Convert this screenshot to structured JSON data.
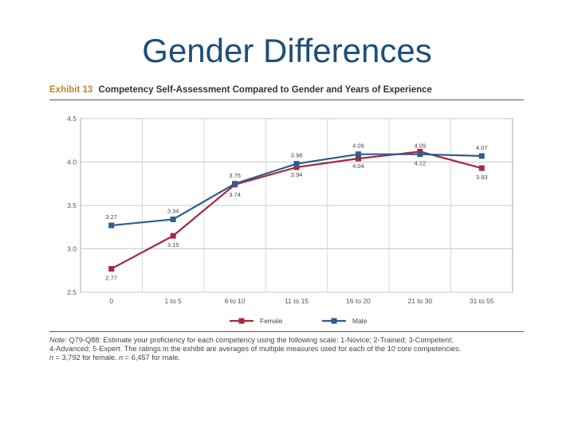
{
  "slide": {
    "title": "Gender Differences"
  },
  "exhibit": {
    "number": "Exhibit 13",
    "title": "Competency Self-Assessment Compared to Gender and Years of Experience"
  },
  "chart_data": {
    "type": "line",
    "title": "Competency Self-Assessment Compared to Gender and Years of Experience",
    "xlabel": "",
    "ylabel": "",
    "categories": [
      "0",
      "1 to 5",
      "6 to 10",
      "11 to 15",
      "16 to 20",
      "21 to 30",
      "31 to 55"
    ],
    "ylim": [
      2.5,
      4.5
    ],
    "yticks": [
      {
        "value": 2.5,
        "label": "2.5"
      },
      {
        "value": 3.0,
        "label": "3.0"
      },
      {
        "value": 3.5,
        "label": "3.5"
      },
      {
        "value": 4.0,
        "label": "4.0"
      },
      {
        "value": 4.5,
        "label": "4.5"
      }
    ],
    "grid": true,
    "legend_position": "bottom",
    "series": [
      {
        "name": "Female",
        "color": "#a8283c",
        "values": [
          2.77,
          3.15,
          3.74,
          3.94,
          4.04,
          4.12,
          3.93
        ],
        "labels": [
          "2.77",
          "3.15",
          "3.74",
          "3.94",
          "4.04",
          "4.12",
          "3.93"
        ]
      },
      {
        "name": "Male",
        "color": "#2e5d8e",
        "values": [
          3.27,
          3.34,
          3.75,
          3.98,
          4.09,
          4.09,
          4.07
        ],
        "labels": [
          "3.27",
          "3.34",
          "3.75",
          "3.98",
          "4.09",
          "4.09",
          "4.07"
        ]
      }
    ]
  },
  "note": {
    "label": "Note:",
    "line1": "Q79-Q88: Estimate your proficiency for each competency using the following scale: 1-Novice; 2-Trained; 3-Competent;",
    "line2": "4-Advanced; 5-Expert. The ratings in the exhibit are averages of multiple measures used for each of the 10 core competencies.",
    "n_var_female": "n",
    "n_female_text": " = 3,792 for female. ",
    "n_var_male": "n",
    "n_male_text": " = 6,457 for male."
  }
}
